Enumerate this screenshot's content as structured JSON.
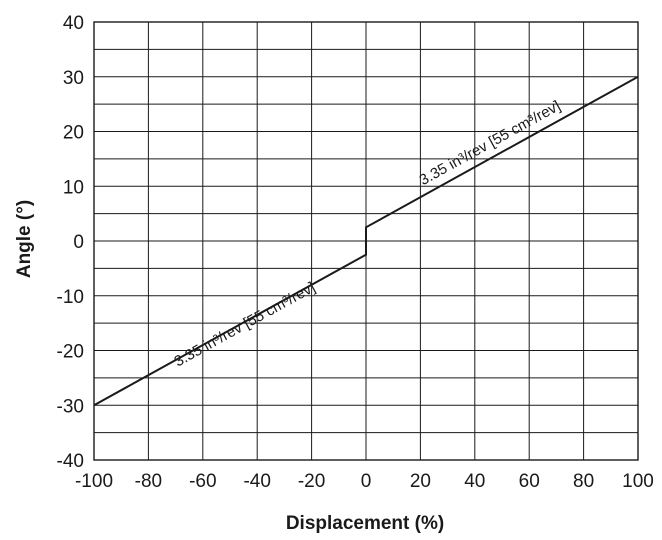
{
  "chart_data": {
    "type": "line",
    "xlabel": "Displacement (%)",
    "ylabel": "Angle (°)",
    "xlim": [
      -100,
      100
    ],
    "ylim": [
      -40,
      40
    ],
    "x_major_ticks": [
      -100,
      -80,
      -60,
      -40,
      -20,
      0,
      20,
      40,
      60,
      80,
      100
    ],
    "y_major_ticks": [
      -40,
      -30,
      -20,
      -10,
      0,
      10,
      20,
      30,
      40
    ],
    "y_minor_step": 5,
    "grid": true,
    "legend": "none",
    "series": [
      {
        "points": [
          [
            -100,
            -30
          ],
          [
            0,
            -2.5
          ],
          [
            0,
            2.5
          ],
          [
            100,
            30
          ]
        ]
      }
    ],
    "annotations": [
      {
        "text": "3.35 in³/rev [55 cm³/rev]",
        "segment": "upper"
      },
      {
        "text": "3.35 in³/rev [55 cm³/rev]",
        "segment": "lower"
      }
    ],
    "colors": {
      "line": "#1a1a1a",
      "grid": "#1a1a1a",
      "text": "#1a1a1a"
    }
  }
}
